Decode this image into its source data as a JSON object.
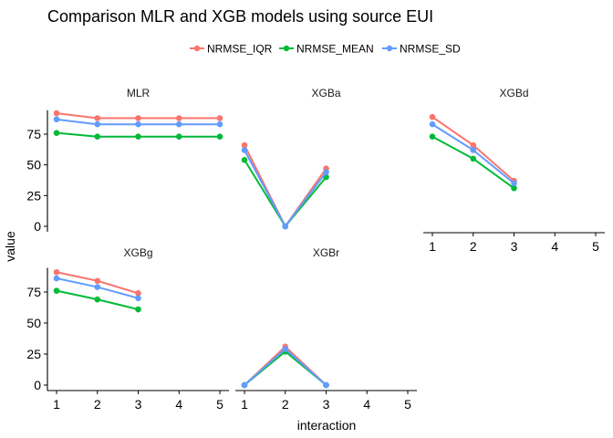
{
  "chart_data": {
    "type": "line",
    "title": "Comparison MLR and XGB models using source EUI",
    "xlabel": "interaction",
    "ylabel": "value",
    "x_ticks": [
      1,
      2,
      3,
      4,
      5
    ],
    "y_ticks": [
      0,
      25,
      50,
      75
    ],
    "xlim": [
      1,
      5
    ],
    "ylim": [
      0,
      93
    ],
    "grid": false,
    "legend_position": "top",
    "legend": [
      {
        "name": "NRMSE_IQR",
        "color": "#F8766D"
      },
      {
        "name": "NRMSE_MEAN",
        "color": "#00BA38"
      },
      {
        "name": "NRMSE_SD",
        "color": "#619CFF"
      }
    ],
    "panels": [
      {
        "label": "MLR",
        "series": [
          {
            "name": "NRMSE_IQR",
            "x": [
              1,
              2,
              3,
              4,
              5
            ],
            "values": [
              92,
              88,
              88,
              88,
              88
            ]
          },
          {
            "name": "NRMSE_MEAN",
            "x": [
              1,
              2,
              3,
              4,
              5
            ],
            "values": [
              76,
              73,
              73,
              73,
              73
            ]
          },
          {
            "name": "NRMSE_SD",
            "x": [
              1,
              2,
              3,
              4,
              5
            ],
            "values": [
              87,
              83,
              83,
              83,
              83
            ]
          }
        ]
      },
      {
        "label": "XGBa",
        "series": [
          {
            "name": "NRMSE_IQR",
            "x": [
              1,
              2,
              3
            ],
            "values": [
              66,
              0,
              47
            ]
          },
          {
            "name": "NRMSE_MEAN",
            "x": [
              1,
              2,
              3
            ],
            "values": [
              54,
              0,
              40
            ]
          },
          {
            "name": "NRMSE_SD",
            "x": [
              1,
              2,
              3
            ],
            "values": [
              62,
              0,
              44
            ]
          }
        ]
      },
      {
        "label": "XGBd",
        "series": [
          {
            "name": "NRMSE_IQR",
            "x": [
              1,
              2,
              3
            ],
            "values": [
              89,
              66,
              37
            ]
          },
          {
            "name": "NRMSE_MEAN",
            "x": [
              1,
              2,
              3
            ],
            "values": [
              73,
              55,
              31
            ]
          },
          {
            "name": "NRMSE_SD",
            "x": [
              1,
              2,
              3
            ],
            "values": [
              83,
              62,
              35
            ]
          }
        ]
      },
      {
        "label": "XGBg",
        "series": [
          {
            "name": "NRMSE_IQR",
            "x": [
              1,
              2,
              3
            ],
            "values": [
              91,
              84,
              74
            ]
          },
          {
            "name": "NRMSE_MEAN",
            "x": [
              1,
              2,
              3
            ],
            "values": [
              76,
              69,
              61
            ]
          },
          {
            "name": "NRMSE_SD",
            "x": [
              1,
              2,
              3
            ],
            "values": [
              86,
              79,
              70
            ]
          }
        ]
      },
      {
        "label": "XGBr",
        "series": [
          {
            "name": "NRMSE_IQR",
            "x": [
              1,
              2,
              3
            ],
            "values": [
              0,
              31,
              0
            ]
          },
          {
            "name": "NRMSE_MEAN",
            "x": [
              1,
              2,
              3
            ],
            "values": [
              0,
              27,
              0
            ]
          },
          {
            "name": "NRMSE_SD",
            "x": [
              1,
              2,
              3
            ],
            "values": [
              0,
              29,
              0
            ]
          }
        ]
      }
    ]
  }
}
